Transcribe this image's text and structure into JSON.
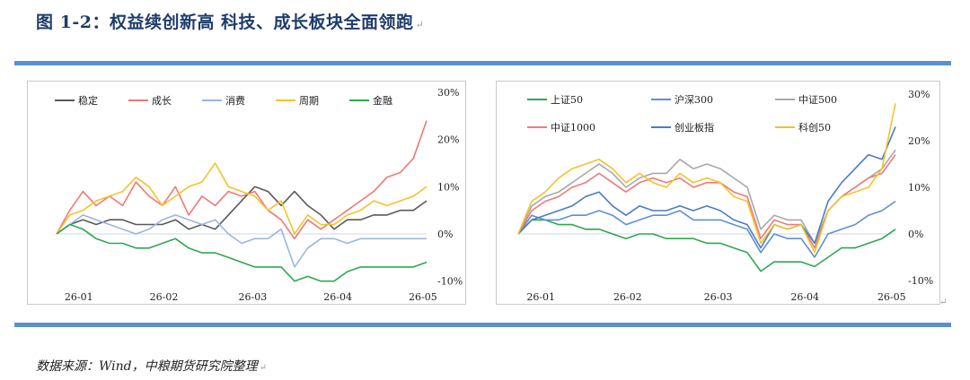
{
  "figure": {
    "title": "图 1-2：权益续创新高 科技、成长板块全面领跑",
    "source": "数据来源：Wind，中粮期货研究院整理",
    "accent_color": "#5b8fd0"
  },
  "chart_data": [
    {
      "type": "line",
      "x_ticks": [
        "26-01",
        "26-02",
        "26-03",
        "26-04",
        "26-05"
      ],
      "ylim": [
        -10,
        30
      ],
      "y_ticks": [
        "30%",
        "20%",
        "10%",
        "0%",
        "-10%"
      ],
      "grid": false,
      "legend_position": "top-left",
      "series": [
        {
          "name": "稳定",
          "color": "#5a5a5a",
          "values": [
            0,
            2,
            3,
            2,
            3,
            3,
            2,
            2,
            2,
            3,
            1,
            2,
            1,
            4,
            7,
            10,
            9,
            6,
            9,
            6,
            4,
            1,
            3,
            3,
            4,
            4,
            5,
            5,
            7
          ]
        },
        {
          "name": "成长",
          "color": "#f07878",
          "values": [
            0,
            5,
            9,
            6,
            8,
            6,
            11,
            8,
            6,
            10,
            4,
            8,
            6,
            9,
            8,
            9,
            5,
            3,
            -1,
            3,
            1,
            3,
            5,
            7,
            9,
            12,
            13,
            16,
            24
          ]
        },
        {
          "name": "消费",
          "color": "#9db5df",
          "values": [
            0,
            2,
            4,
            3,
            2,
            1,
            0,
            1,
            3,
            4,
            3,
            2,
            3,
            0,
            -2,
            -1,
            -1,
            1,
            -7,
            -3,
            -1,
            -1,
            -2,
            -1,
            -1,
            -1,
            -1,
            -1,
            -1
          ]
        },
        {
          "name": "周期",
          "color": "#f4c22b",
          "values": [
            0,
            4,
            5,
            7,
            8,
            9,
            12,
            10,
            6,
            8,
            10,
            11,
            15,
            10,
            9,
            8,
            5,
            7,
            0,
            4,
            2,
            2,
            4,
            5,
            7,
            6,
            7,
            8,
            10
          ]
        },
        {
          "name": "金融",
          "color": "#2fa84f",
          "values": [
            0,
            2,
            1,
            -1,
            -2,
            -2,
            -3,
            -3,
            -2,
            -1,
            -3,
            -4,
            -4,
            -5,
            -6,
            -7,
            -7,
            -7,
            -10,
            -9,
            -10,
            -10,
            -8,
            -7,
            -7,
            -7,
            -7,
            -7,
            -6
          ]
        }
      ]
    },
    {
      "type": "line",
      "x_ticks": [
        "26-01",
        "26-02",
        "26-03",
        "26-04",
        "26-05"
      ],
      "ylim": [
        -10,
        30
      ],
      "y_ticks": [
        "30%",
        "20%",
        "10%",
        "0%",
        "-10%"
      ],
      "grid": false,
      "legend_position": "top",
      "series": [
        {
          "name": "上证50",
          "color": "#2fa84f",
          "values": [
            0,
            3,
            3,
            2,
            2,
            1,
            1,
            0,
            -1,
            0,
            0,
            -1,
            -1,
            -1,
            -2,
            -2,
            -3,
            -4,
            -8,
            -6,
            -6,
            -6,
            -7,
            -5,
            -3,
            -3,
            -2,
            -1,
            1
          ]
        },
        {
          "name": "沪深300",
          "color": "#5e8fcf",
          "values": [
            0,
            4,
            3,
            3,
            4,
            4,
            5,
            4,
            2,
            3,
            4,
            4,
            5,
            3,
            3,
            3,
            2,
            1,
            -4,
            0,
            -1,
            -1,
            -5,
            0,
            1,
            2,
            4,
            5,
            7
          ]
        },
        {
          "name": "中证500",
          "color": "#a8a8a8",
          "values": [
            0,
            6,
            8,
            9,
            11,
            13,
            15,
            13,
            10,
            12,
            13,
            13,
            16,
            14,
            15,
            14,
            12,
            10,
            1,
            4,
            3,
            3,
            -2,
            5,
            8,
            10,
            12,
            14,
            18
          ]
        },
        {
          "name": "中证1000",
          "color": "#f07878",
          "values": [
            0,
            5,
            7,
            8,
            10,
            11,
            13,
            11,
            9,
            11,
            12,
            11,
            12,
            10,
            11,
            11,
            9,
            8,
            -1,
            3,
            2,
            2,
            -3,
            5,
            8,
            10,
            12,
            13,
            17
          ]
        },
        {
          "name": "创业板指",
          "color": "#4a7dc4",
          "values": [
            0,
            3,
            4,
            5,
            6,
            8,
            9,
            6,
            4,
            6,
            5,
            5,
            6,
            5,
            6,
            5,
            3,
            2,
            -3,
            2,
            1,
            2,
            -2,
            7,
            11,
            14,
            17,
            16,
            23
          ]
        },
        {
          "name": "科创50",
          "color": "#f4c22b",
          "values": [
            0,
            7,
            9,
            12,
            14,
            15,
            16,
            14,
            11,
            13,
            11,
            10,
            13,
            11,
            12,
            11,
            8,
            7,
            -2,
            2,
            1,
            2,
            -4,
            5,
            8,
            9,
            10,
            14,
            28
          ]
        }
      ]
    }
  ]
}
